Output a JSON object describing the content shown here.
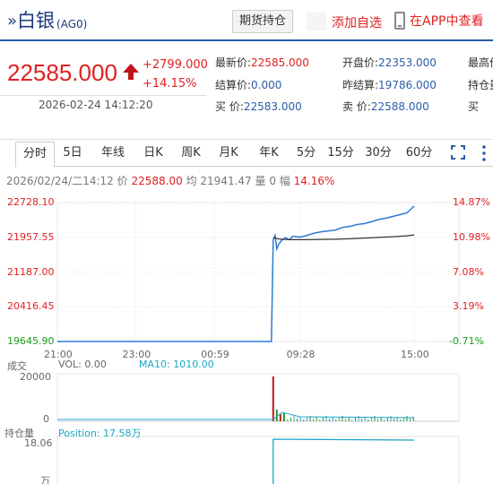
{
  "header": {
    "title_prefix": "»",
    "title": "白银",
    "code": "(AG0)",
    "position_button": "期货持仓",
    "watchlist_button": "添加自选",
    "app_button": "在APP中查看"
  },
  "price": {
    "last": "22585.000",
    "change": "+2799.000",
    "change_pct": "+14.15%",
    "timestamp": "2026-02-24 14:12:20",
    "direction": "up"
  },
  "quotes": [
    {
      "label": "最新价:",
      "value": "22585.000",
      "color": "red"
    },
    {
      "label": "开盘价:",
      "value": "22353.000",
      "color": "blue"
    },
    {
      "label": "最高价",
      "value": "",
      "color": "red"
    },
    {
      "label": "结算价:",
      "value": "0.000",
      "color": "blue"
    },
    {
      "label": "昨结算:",
      "value": "19786.000",
      "color": "blue"
    },
    {
      "label": "持仓量",
      "value": "",
      "color": "blue"
    },
    {
      "label": "买  价:",
      "value": "22583.000",
      "color": "blue"
    },
    {
      "label": "卖  价:",
      "value": "22588.000",
      "color": "blue"
    },
    {
      "label": "买",
      "value": "",
      "color": "blue"
    }
  ],
  "tabs": [
    "分时",
    "5日",
    "年线",
    "日K",
    "周K",
    "月K",
    "年K",
    "5分",
    "15分",
    "30分",
    "60分"
  ],
  "active_tab": "分时",
  "infobar": {
    "date": "2026/02/24/二14:12",
    "price_label": "价",
    "price": "22588.00",
    "avg_label": "均",
    "avg": "21941.47",
    "vol_label": "量",
    "vol": "0",
    "amp_label": "幅",
    "amp": "14.16%"
  },
  "chart_data": {
    "type": "line",
    "y_ticks": [
      "22728.10",
      "21957.55",
      "21187.00",
      "20416.45",
      "19645.90"
    ],
    "pct_ticks": [
      "14.87%",
      "10.98%",
      "7.08%",
      "3.19%",
      "-0.71%"
    ],
    "x_ticks": [
      "21:00",
      "23:00",
      "00:59",
      "09:28",
      "15:00"
    ],
    "ylim": [
      19645.9,
      22728.1
    ],
    "series": [
      {
        "color": "#2a7bd5",
        "x": [
          0,
          0.5,
          0.6,
          0.605,
          0.61,
          0.615,
          0.62,
          0.63,
          0.64,
          0.65,
          0.66,
          0.68,
          0.7,
          0.72,
          0.74,
          0.76,
          0.78,
          0.8,
          0.82,
          0.84,
          0.86,
          0.88,
          0.9,
          0.92,
          0.94,
          0.96,
          0.98,
          1.0
        ],
        "values": [
          19645.9,
          19645.9,
          19645.9,
          21900,
          22000,
          21700,
          21800,
          21900,
          21950,
          21900,
          21980,
          21960,
          22000,
          22050,
          22080,
          22100,
          22120,
          22180,
          22200,
          22240,
          22260,
          22300,
          22350,
          22380,
          22420,
          22460,
          22500,
          22650
        ]
      },
      {
        "color": "#333333",
        "x": [
          0.605,
          0.62,
          0.64,
          0.66,
          0.7,
          0.74,
          0.78,
          0.82,
          0.86,
          0.9,
          0.94,
          0.98,
          1.0
        ],
        "values": [
          21950,
          21920,
          21910,
          21905,
          21905,
          21910,
          21915,
          21925,
          21940,
          21955,
          21970,
          21990,
          22010
        ]
      }
    ]
  },
  "volume": {
    "title": "成交",
    "vol_label": "VOL: 0.00",
    "ma_label": "MA10: 1010.00",
    "y_top": "20000",
    "y_bottom": "0"
  },
  "open_interest": {
    "title": "持仓量",
    "label": "Position: 17.58万",
    "y_top": "18.06",
    "y_next": "万"
  },
  "colors": {
    "up": "#e02020",
    "down": "#1a9a1a",
    "accent": "#2a5caa",
    "price_line": "#2a7bd5"
  }
}
